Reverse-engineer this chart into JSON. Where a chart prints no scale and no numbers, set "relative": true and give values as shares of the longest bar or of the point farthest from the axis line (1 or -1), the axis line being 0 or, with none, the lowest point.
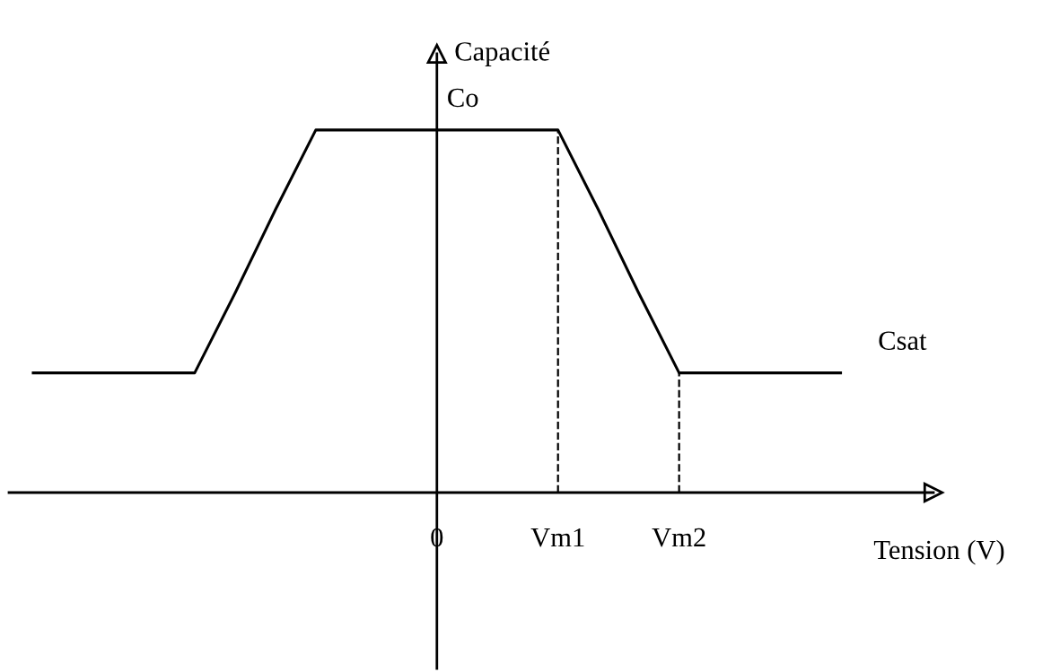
{
  "chart_data": {
    "type": "line",
    "relative": true,
    "xlabel": "Tension (V)",
    "ylabel": "Capacité",
    "categories": [
      null,
      null,
      null,
      null,
      null,
      null,
      null,
      null,
      null,
      null,
      "0",
      null,
      null,
      "Vm1",
      null,
      null,
      "Vm2",
      null,
      null,
      null,
      null
    ],
    "series": [
      {
        "color": "#000000",
        "values": [
          0.33,
          0.33,
          0.33,
          0.33,
          0.33,
          0.55,
          0.78,
          1,
          1,
          1,
          1,
          1,
          1,
          1,
          0.78,
          0.55,
          0.33,
          0.33,
          0.33,
          0.33,
          0.33
        ]
      }
    ],
    "annotations": [
      {
        "text": "Co",
        "x": "0",
        "y": 1
      },
      "Csat"
    ],
    "ref_lines": [
      {
        "axis": "x",
        "value": "Vm1",
        "color": "#000000",
        "line_style": "dashed"
      },
      {
        "axis": "x",
        "value": "Vm2",
        "color": "#000000",
        "line_style": "dashed"
      }
    ],
    "grid": false,
    "legend": false
  }
}
